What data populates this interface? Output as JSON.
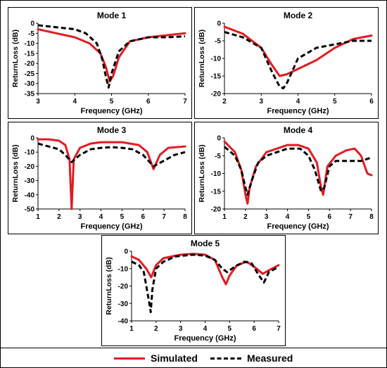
{
  "legend": {
    "simulated_label": "Simulated",
    "measured_label": "Measured",
    "simulated_color": "#e31b23",
    "measured_color": "#000000"
  },
  "chart_data": [
    {
      "type": "line",
      "title": "Mode 1",
      "xlabel": "Frequency (GHz)",
      "ylabel": "ReturnLoss (dB)",
      "xlim": [
        3,
        7
      ],
      "ylim": [
        -35,
        0
      ],
      "xticks": [
        "3",
        "4",
        "5",
        "6",
        "7"
      ],
      "yticks": [
        "-35",
        "-30",
        "-25",
        "-20",
        "-15",
        "-10",
        "-5",
        "0"
      ],
      "series": [
        {
          "name": "Simulated",
          "x": [
            3,
            3.5,
            4,
            4.4,
            4.7,
            4.85,
            4.95,
            5.05,
            5.2,
            5.5,
            6,
            6.5,
            7
          ],
          "y": [
            -3,
            -5,
            -7,
            -10,
            -15,
            -22,
            -29,
            -26,
            -17,
            -9,
            -7,
            -6,
            -5
          ]
        },
        {
          "name": "Measured",
          "x": [
            3,
            3.5,
            4,
            4.3,
            4.6,
            4.75,
            4.85,
            4.92,
            5.0,
            5.2,
            5.5,
            6,
            6.5,
            7
          ],
          "y": [
            -1,
            -2,
            -3,
            -5,
            -10,
            -18,
            -27,
            -32,
            -25,
            -14,
            -9,
            -7,
            -7,
            -6.5
          ]
        }
      ]
    },
    {
      "type": "line",
      "title": "Mode 2",
      "xlabel": "Frequency (GHz)",
      "ylabel": "ReturnLoss (dB)",
      "xlim": [
        2,
        6
      ],
      "ylim": [
        -20,
        0
      ],
      "xticks": [
        "2",
        "3",
        "4",
        "5",
        "6"
      ],
      "yticks": [
        "-20",
        "-15",
        "-10",
        "-5",
        "0"
      ],
      "series": [
        {
          "name": "Simulated",
          "x": [
            2,
            2.5,
            3,
            3.3,
            3.5,
            3.7,
            4,
            4.5,
            5,
            5.5,
            6
          ],
          "y": [
            -1,
            -3,
            -7,
            -12,
            -15,
            -14.5,
            -13,
            -10.5,
            -7,
            -4.5,
            -3.5
          ]
        },
        {
          "name": "Measured",
          "x": [
            2,
            2.5,
            3,
            3.3,
            3.5,
            3.6,
            3.7,
            4,
            4.5,
            5,
            5.5,
            6
          ],
          "y": [
            -2.5,
            -4,
            -7,
            -14,
            -18,
            -18.5,
            -17,
            -10,
            -7,
            -6,
            -5,
            -5
          ]
        }
      ]
    },
    {
      "type": "line",
      "title": "Mode 3",
      "xlabel": "Frequency (GHz)",
      "ylabel": "ReturnLoss (dB)",
      "xlim": [
        1,
        8
      ],
      "ylim": [
        -50,
        0
      ],
      "xticks": [
        "1",
        "2",
        "3",
        "4",
        "5",
        "6",
        "7",
        "8"
      ],
      "yticks": [
        "-50",
        "-40",
        "-30",
        "-20",
        "-10",
        "0"
      ],
      "series": [
        {
          "name": "Simulated",
          "x": [
            1,
            1.5,
            2,
            2.3,
            2.5,
            2.6,
            2.7,
            3,
            3.5,
            4,
            5,
            5.8,
            6.2,
            6.5,
            6.8,
            7.2,
            8
          ],
          "y": [
            -1,
            -1,
            -2,
            -5,
            -15,
            -50,
            -15,
            -7,
            -4,
            -3,
            -3,
            -5,
            -10,
            -22,
            -12,
            -7,
            -6
          ]
        },
        {
          "name": "Measured",
          "x": [
            1,
            1.5,
            2,
            2.3,
            2.6,
            3,
            3.5,
            4,
            4.5,
            5,
            5.5,
            6,
            6.5,
            7,
            7.5,
            8
          ],
          "y": [
            -4,
            -6,
            -8,
            -12,
            -17,
            -12,
            -8,
            -7,
            -6.5,
            -7,
            -8,
            -12,
            -20,
            -16,
            -12,
            -10
          ]
        }
      ]
    },
    {
      "type": "line",
      "title": "Mode 4",
      "xlabel": "Frequency (GHz)",
      "ylabel": "ReturnLoss (dB)",
      "xlim": [
        1,
        8
      ],
      "ylim": [
        -20,
        0
      ],
      "xticks": [
        "1",
        "2",
        "3",
        "4",
        "5",
        "6",
        "7",
        "8"
      ],
      "yticks": [
        "-20",
        "-15",
        "-10",
        "-5",
        "0"
      ],
      "series": [
        {
          "name": "Simulated",
          "x": [
            1,
            1.5,
            1.8,
            2,
            2.1,
            2.2,
            2.5,
            3,
            4,
            4.5,
            5,
            5.4,
            5.6,
            5.7,
            5.9,
            6.3,
            6.8,
            7.2,
            7.5,
            7.8,
            8
          ],
          "y": [
            -1,
            -4,
            -9,
            -16,
            -18.5,
            -14,
            -8,
            -4,
            -2,
            -2,
            -3,
            -7,
            -14,
            -16,
            -8,
            -5,
            -3.5,
            -3,
            -5,
            -10,
            -10.5
          ]
        },
        {
          "name": "Measured",
          "x": [
            1,
            1.5,
            1.8,
            2,
            2.1,
            2.3,
            2.6,
            3,
            3.5,
            4,
            4.6,
            5,
            5.3,
            5.6,
            5.75,
            6,
            6.3,
            7,
            7.5,
            8
          ],
          "y": [
            -2.5,
            -5,
            -9,
            -14,
            -16,
            -12,
            -7,
            -5,
            -4,
            -3,
            -3,
            -5,
            -9,
            -15,
            -14,
            -8,
            -6.5,
            -6.5,
            -6.5,
            -5.5
          ]
        }
      ]
    },
    {
      "type": "line",
      "title": "Mode 5",
      "xlabel": "Frequency (GHz)",
      "ylabel": "ReturnLoss (dB)",
      "xlim": [
        1,
        7
      ],
      "ylim": [
        -40,
        0
      ],
      "xticks": [
        "1",
        "2",
        "3",
        "4",
        "5",
        "6",
        "7"
      ],
      "yticks": [
        "-40",
        "-30",
        "-20",
        "-10",
        "0"
      ],
      "series": [
        {
          "name": "Simulated",
          "x": [
            1,
            1.3,
            1.6,
            1.8,
            2.0,
            2.3,
            3,
            3.5,
            4,
            4.4,
            4.7,
            4.85,
            5.0,
            5.3,
            5.7,
            6.1,
            6.35,
            6.6,
            7
          ],
          "y": [
            -3,
            -5,
            -10,
            -15,
            -8,
            -4,
            -2,
            -1.5,
            -2,
            -5,
            -15,
            -19,
            -14,
            -8,
            -6,
            -10,
            -13,
            -11,
            -8
          ]
        },
        {
          "name": "Measured",
          "x": [
            1,
            1.3,
            1.5,
            1.7,
            1.78,
            1.85,
            2.0,
            2.3,
            2.8,
            3.5,
            4,
            4.4,
            4.7,
            4.9,
            5.2,
            5.6,
            5.9,
            6.2,
            6.4,
            6.6,
            7
          ],
          "y": [
            -6,
            -8,
            -12,
            -28,
            -35,
            -22,
            -10,
            -6,
            -3,
            -2,
            -2.5,
            -5,
            -10,
            -12,
            -9,
            -6,
            -7,
            -14,
            -18,
            -12,
            -9
          ]
        }
      ]
    }
  ]
}
